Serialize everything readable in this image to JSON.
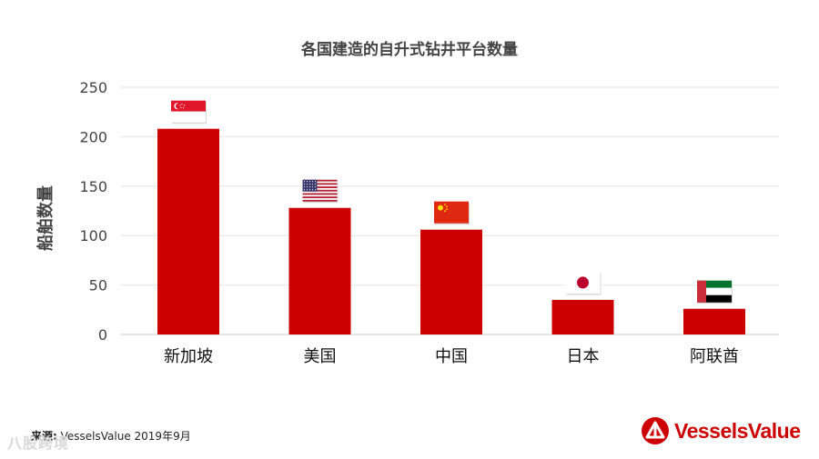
{
  "chart_data": {
    "type": "bar",
    "title": "各国建造的自升式钻井平台数量",
    "ylabel": "船舶数量",
    "xlabel": "",
    "categories": [
      "新加坡",
      "美国",
      "中国",
      "日本",
      "阿联酋"
    ],
    "values": [
      208,
      128,
      106,
      35,
      26
    ],
    "ylim": [
      0,
      250
    ],
    "yticks": [
      0,
      50,
      100,
      150,
      200,
      250
    ],
    "grid": true,
    "bar_color": "#cc0000",
    "flags": [
      "singapore-flag-icon",
      "usa-flag-icon",
      "china-flag-icon",
      "japan-flag-icon",
      "uae-flag-icon"
    ]
  },
  "source": {
    "label": "来源:",
    "text": " VesselsValue 2019年9月"
  },
  "logo": {
    "text": "VesselsValue",
    "color": "#cc0000"
  },
  "watermark": {
    "text": "八股跨境"
  }
}
